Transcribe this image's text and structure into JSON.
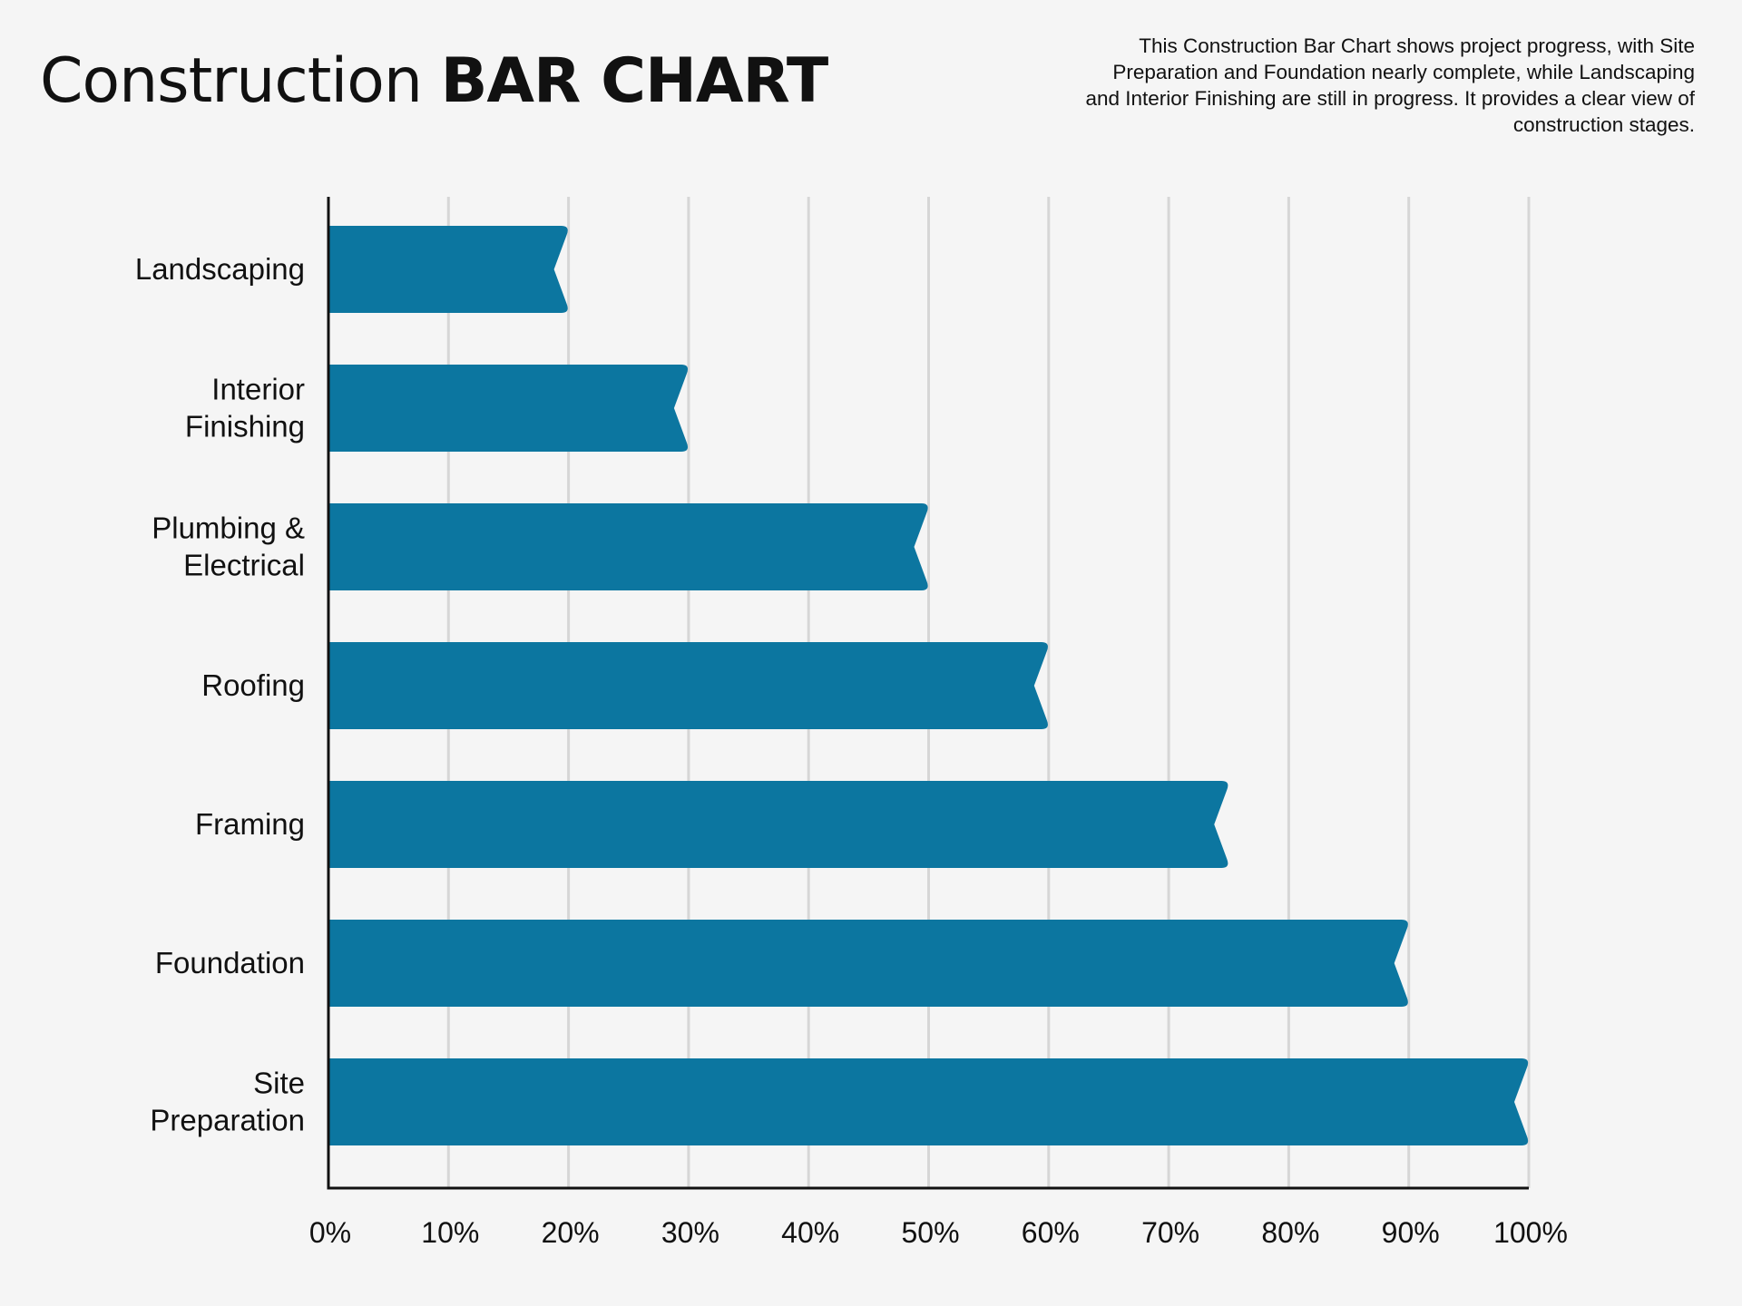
{
  "header": {
    "title_light": "Construction",
    "title_bold": "BAR CHART",
    "description": "This Construction Bar Chart shows project progress, with Site Preparation and Foundation nearly complete, while Landscaping and Interior Finishing are still in progress. It provides a clear view of construction stages."
  },
  "colors": {
    "bar": "#0c76a0",
    "grid": "#d6d6d6",
    "axis": "#111111",
    "background": "#f5f5f5"
  },
  "chart_data": {
    "type": "bar",
    "orientation": "horizontal",
    "categories": [
      [
        "Landscaping"
      ],
      [
        "Interior",
        "Finishing"
      ],
      [
        "Plumbing &",
        "Electrical"
      ],
      [
        "Roofing"
      ],
      [
        "Framing"
      ],
      [
        "Foundation"
      ],
      [
        "Site",
        "Preparation"
      ]
    ],
    "values": [
      20,
      30,
      50,
      60,
      75,
      90,
      100
    ],
    "xlim": [
      0,
      100
    ],
    "ticks": [
      "0%",
      "10%",
      "20%",
      "30%",
      "40%",
      "50%",
      "60%",
      "70%",
      "80%",
      "90%",
      "100%"
    ],
    "grid": true,
    "legend": "none"
  }
}
